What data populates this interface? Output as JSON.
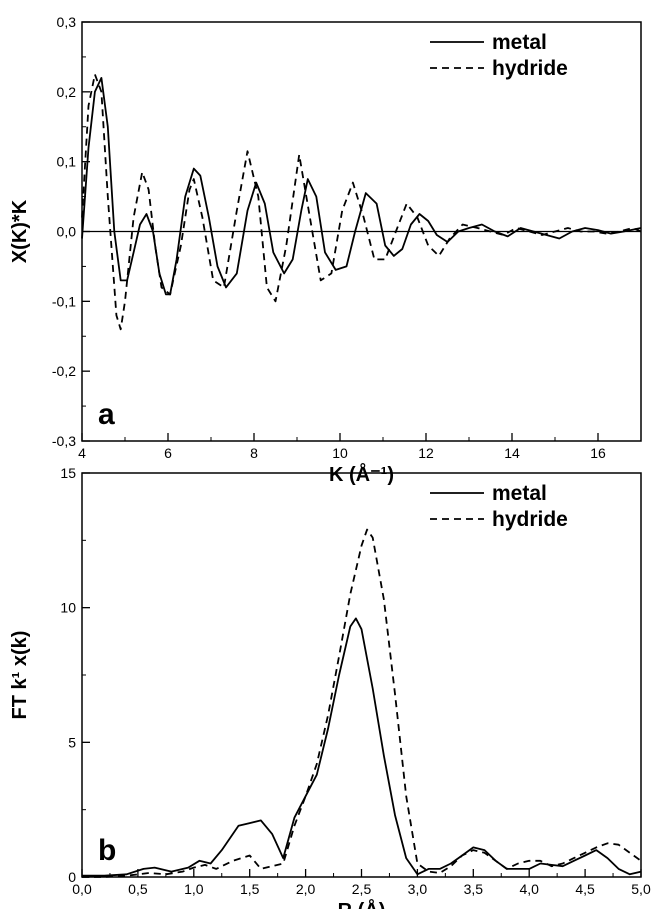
{
  "chart_data": [
    {
      "type": "line",
      "panel_label": "a",
      "xlabel": "K (Å⁻¹)",
      "ylabel": "X(K)*K",
      "xlim": [
        4,
        17
      ],
      "ylim": [
        -0.3,
        0.3
      ],
      "xticks": [
        "4",
        "6",
        "8",
        "10",
        "12",
        "14",
        "16"
      ],
      "yticks": [
        "-0,3",
        "-0,2",
        "-0,1",
        "0,0",
        "0,1",
        "0,2",
        "0,3"
      ],
      "zero_line": true,
      "legend_position": "top-right",
      "series": [
        {
          "name": "metal",
          "style": "solid",
          "color": "#000000",
          "x": [
            4.0,
            4.15,
            4.3,
            4.45,
            4.6,
            4.75,
            4.9,
            5.05,
            5.2,
            5.35,
            5.5,
            5.65,
            5.8,
            5.95,
            6.05,
            6.2,
            6.4,
            6.6,
            6.75,
            6.95,
            7.15,
            7.35,
            7.6,
            7.85,
            8.05,
            8.25,
            8.45,
            8.7,
            8.9,
            9.1,
            9.25,
            9.45,
            9.65,
            9.9,
            10.15,
            10.35,
            10.6,
            10.85,
            11.05,
            11.25,
            11.45,
            11.65,
            11.85,
            12.05,
            12.25,
            12.5,
            12.75,
            13.0,
            13.3,
            13.6,
            13.9,
            14.2,
            14.5,
            14.8,
            15.1,
            15.4,
            15.7,
            16.0,
            16.3,
            16.6,
            17.0
          ],
          "y": [
            -0.01,
            0.12,
            0.2,
            0.22,
            0.15,
            0.0,
            -0.07,
            -0.07,
            -0.03,
            0.01,
            0.025,
            0.0,
            -0.06,
            -0.09,
            -0.09,
            -0.04,
            0.05,
            0.09,
            0.08,
            0.02,
            -0.05,
            -0.08,
            -0.06,
            0.03,
            0.07,
            0.04,
            -0.03,
            -0.06,
            -0.04,
            0.03,
            0.075,
            0.05,
            -0.03,
            -0.055,
            -0.05,
            0.0,
            0.055,
            0.04,
            -0.02,
            -0.035,
            -0.025,
            0.01,
            0.025,
            0.015,
            -0.005,
            -0.015,
            0.0,
            0.005,
            0.01,
            0.0,
            -0.007,
            0.005,
            0.0,
            -0.005,
            -0.01,
            0.0,
            0.005,
            0.002,
            -0.003,
            0.0,
            0.005
          ]
        },
        {
          "name": "hydride",
          "style": "dashed",
          "color": "#000000",
          "x": [
            4.0,
            4.15,
            4.3,
            4.45,
            4.6,
            4.8,
            4.9,
            5.0,
            5.2,
            5.4,
            5.55,
            5.7,
            5.85,
            6.05,
            6.3,
            6.5,
            6.6,
            6.8,
            7.05,
            7.3,
            7.6,
            7.85,
            8.1,
            8.3,
            8.5,
            8.75,
            9.05,
            9.3,
            9.55,
            9.8,
            10.05,
            10.3,
            10.55,
            10.8,
            11.05,
            11.3,
            11.55,
            11.8,
            12.05,
            12.3,
            12.55,
            12.85,
            13.2,
            13.5,
            13.8,
            14.1,
            14.4,
            14.7,
            15.0,
            15.3,
            15.6,
            15.9,
            16.2,
            16.5,
            16.8,
            17.0
          ],
          "y": [
            0.02,
            0.18,
            0.225,
            0.2,
            0.05,
            -0.12,
            -0.14,
            -0.1,
            0.02,
            0.085,
            0.06,
            -0.02,
            -0.08,
            -0.09,
            -0.02,
            0.06,
            0.075,
            0.02,
            -0.07,
            -0.08,
            0.03,
            0.115,
            0.05,
            -0.08,
            -0.1,
            -0.02,
            0.11,
            0.02,
            -0.07,
            -0.06,
            0.03,
            0.07,
            0.02,
            -0.04,
            -0.04,
            0.0,
            0.04,
            0.02,
            -0.02,
            -0.035,
            -0.01,
            0.01,
            0.005,
            0.0,
            -0.005,
            0.005,
            0.0,
            -0.005,
            0.0,
            0.005,
            0.0,
            0.0,
            -0.003,
            0.0,
            0.005,
            0.0
          ]
        }
      ]
    },
    {
      "type": "line",
      "panel_label": "b",
      "xlabel": "R (Å)",
      "ylabel": "FT k¹ x(k)",
      "xlim": [
        0.0,
        5.0
      ],
      "ylim": [
        0,
        15
      ],
      "xticks": [
        "0,0",
        "0,5",
        "1,0",
        "1,5",
        "2,0",
        "2,5",
        "3,0",
        "3,5",
        "4,0",
        "4,5",
        "5,0"
      ],
      "yticks": [
        "0",
        "5",
        "10",
        "15"
      ],
      "legend_position": "top-right",
      "series": [
        {
          "name": "metal",
          "style": "solid",
          "color": "#000000",
          "x": [
            0.0,
            0.2,
            0.4,
            0.55,
            0.65,
            0.8,
            0.95,
            1.05,
            1.15,
            1.25,
            1.4,
            1.5,
            1.6,
            1.7,
            1.8,
            1.9,
            2.0,
            2.1,
            2.2,
            2.3,
            2.4,
            2.45,
            2.5,
            2.6,
            2.7,
            2.8,
            2.9,
            3.0,
            3.1,
            3.2,
            3.3,
            3.4,
            3.5,
            3.6,
            3.7,
            3.8,
            3.9,
            4.0,
            4.1,
            4.2,
            4.3,
            4.4,
            4.5,
            4.6,
            4.7,
            4.8,
            4.9,
            5.0
          ],
          "y": [
            0.05,
            0.05,
            0.1,
            0.3,
            0.35,
            0.2,
            0.35,
            0.6,
            0.5,
            1.0,
            1.9,
            2.0,
            2.1,
            1.6,
            0.7,
            2.2,
            3.0,
            3.8,
            5.5,
            7.5,
            9.3,
            9.6,
            9.2,
            7.0,
            4.5,
            2.3,
            0.7,
            0.1,
            0.3,
            0.3,
            0.5,
            0.8,
            1.1,
            1.0,
            0.6,
            0.3,
            0.3,
            0.3,
            0.5,
            0.45,
            0.4,
            0.6,
            0.8,
            1.0,
            0.7,
            0.3,
            0.1,
            0.2
          ]
        },
        {
          "name": "hydride",
          "style": "dashed",
          "color": "#000000",
          "x": [
            0.0,
            0.2,
            0.4,
            0.6,
            0.75,
            0.9,
            1.0,
            1.1,
            1.2,
            1.35,
            1.5,
            1.6,
            1.7,
            1.8,
            1.9,
            2.0,
            2.1,
            2.2,
            2.3,
            2.4,
            2.5,
            2.55,
            2.6,
            2.7,
            2.8,
            2.9,
            3.0,
            3.1,
            3.2,
            3.3,
            3.4,
            3.5,
            3.6,
            3.7,
            3.8,
            3.9,
            4.0,
            4.1,
            4.2,
            4.3,
            4.4,
            4.5,
            4.6,
            4.7,
            4.8,
            4.9,
            5.0
          ],
          "y": [
            0.0,
            0.0,
            0.05,
            0.15,
            0.1,
            0.2,
            0.35,
            0.45,
            0.3,
            0.6,
            0.8,
            0.3,
            0.4,
            0.5,
            1.9,
            3.0,
            4.2,
            6.0,
            8.2,
            10.5,
            12.3,
            12.9,
            12.6,
            10.3,
            6.8,
            3.0,
            0.5,
            0.2,
            0.15,
            0.4,
            0.8,
            1.0,
            0.9,
            0.6,
            0.3,
            0.5,
            0.6,
            0.6,
            0.4,
            0.5,
            0.7,
            0.9,
            1.1,
            1.25,
            1.2,
            0.9,
            0.6
          ]
        }
      ]
    }
  ]
}
